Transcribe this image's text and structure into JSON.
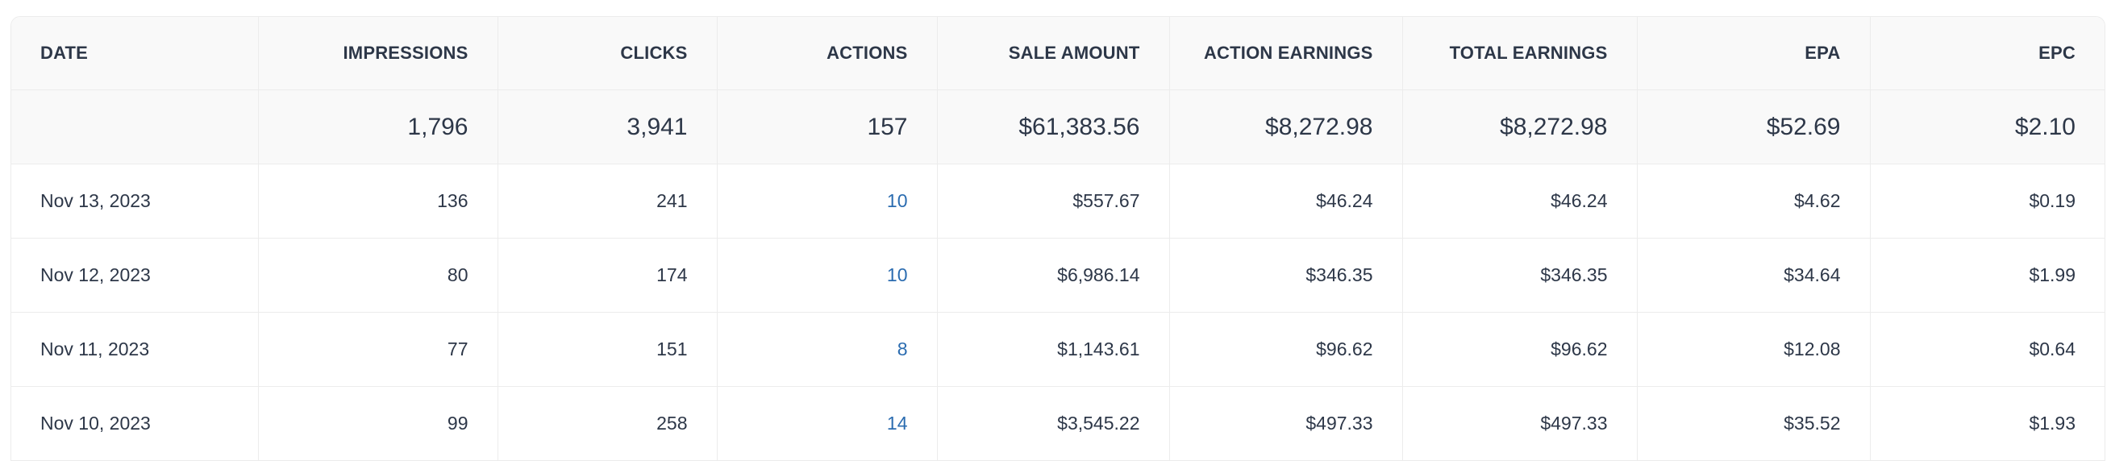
{
  "colors": {
    "text": "#2d3748",
    "link": "#2b6cb0",
    "header_bg": "#f9f9f9",
    "border": "#ececec"
  },
  "columns": [
    "DATE",
    "IMPRESSIONS",
    "CLICKS",
    "ACTIONS",
    "SALE AMOUNT",
    "ACTION EARNINGS",
    "TOTAL EARNINGS",
    "EPA",
    "EPC"
  ],
  "totals": [
    "",
    "1,796",
    "3,941",
    "157",
    "$61,383.56",
    "$8,272.98",
    "$8,272.98",
    "$52.69",
    "$2.10"
  ],
  "rows": [
    [
      "Nov 13, 2023",
      "136",
      "241",
      "10",
      "$557.67",
      "$46.24",
      "$46.24",
      "$4.62",
      "$0.19"
    ],
    [
      "Nov 12, 2023",
      "80",
      "174",
      "10",
      "$6,986.14",
      "$346.35",
      "$346.35",
      "$34.64",
      "$1.99"
    ],
    [
      "Nov 11, 2023",
      "77",
      "151",
      "8",
      "$1,143.61",
      "$96.62",
      "$96.62",
      "$12.08",
      "$0.64"
    ],
    [
      "Nov 10, 2023",
      "99",
      "258",
      "14",
      "$3,545.22",
      "$497.33",
      "$497.33",
      "$35.52",
      "$1.93"
    ]
  ]
}
